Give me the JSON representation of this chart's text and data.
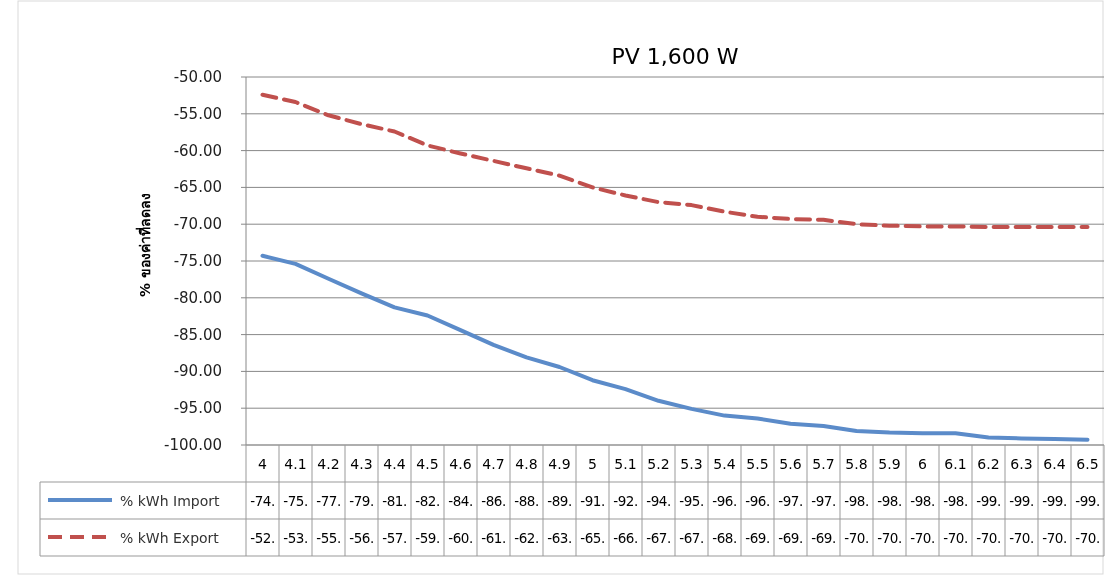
{
  "chart_data": {
    "type": "line",
    "title": "PV 1,600 W",
    "ylabel": "% ของค่าที่ลดลง",
    "categories": [
      "4",
      "4.1",
      "4.2",
      "4.3",
      "4.4",
      "4.5",
      "4.6",
      "4.7",
      "4.8",
      "4.9",
      "5",
      "5.1",
      "5.2",
      "5.3",
      "5.4",
      "5.5",
      "5.6",
      "5.7",
      "5.8",
      "5.9",
      "6",
      "6.1",
      "6.2",
      "6.3",
      "6.4",
      "6.5"
    ],
    "series": [
      {
        "name": "% kWh Import",
        "color": "#5b8bc9",
        "line_style": "solid",
        "values": [
          -74.3,
          -75.4,
          -77.4,
          -79.4,
          -81.3,
          -82.4,
          -84.4,
          -86.4,
          -88.1,
          -89.4,
          -91.2,
          -92.4,
          -94.0,
          -95.1,
          -96.0,
          -96.4,
          -97.1,
          -97.4,
          -98.1,
          -98.3,
          -98.4,
          -98.4,
          -99.0,
          -99.1,
          -99.2,
          -99.3
        ],
        "value_labels": [
          "-74.",
          "-75.",
          "-77.",
          "-79.",
          "-81.",
          "-82.",
          "-84.",
          "-86.",
          "-88.",
          "-89.",
          "-91.",
          "-92.",
          "-94.",
          "-95.",
          "-96.",
          "-96.",
          "-97.",
          "-97.",
          "-98.",
          "-98.",
          "-98.",
          "-98.",
          "-99.",
          "-99.",
          "-99.",
          "-99."
        ]
      },
      {
        "name": "% kWh Export",
        "color": "#c0504d",
        "line_style": "dashed",
        "values": [
          -52.4,
          -53.4,
          -55.2,
          -56.4,
          -57.4,
          -59.3,
          -60.4,
          -61.4,
          -62.4,
          -63.4,
          -65.0,
          -66.1,
          -67.0,
          -67.4,
          -68.3,
          -69.0,
          -69.3,
          -69.4,
          -70.0,
          -70.2,
          -70.3,
          -70.3,
          -70.4,
          -70.4,
          -70.4,
          -70.4
        ],
        "value_labels": [
          "-52.",
          "-53.",
          "-55.",
          "-56.",
          "-57.",
          "-59.",
          "-60.",
          "-61.",
          "-62.",
          "-63.",
          "-65.",
          "-66.",
          "-67.",
          "-67.",
          "-68.",
          "-69.",
          "-69.",
          "-69.",
          "-70.",
          "-70.",
          "-70.",
          "-70.",
          "-70.",
          "-70.",
          "-70.",
          "-70."
        ]
      }
    ],
    "ylim": [
      -100,
      -50
    ],
    "yticks": [
      {
        "value": -50,
        "label": "-50.00"
      },
      {
        "value": -55,
        "label": "-55.00"
      },
      {
        "value": -60,
        "label": "-60.00"
      },
      {
        "value": -65,
        "label": "-65.00"
      },
      {
        "value": -70,
        "label": "-70.00"
      },
      {
        "value": -75,
        "label": "-75.00"
      },
      {
        "value": -80,
        "label": "-80.00"
      },
      {
        "value": -85,
        "label": "-85.00"
      },
      {
        "value": -90,
        "label": "-90.00"
      },
      {
        "value": -95,
        "label": "-95.00"
      },
      {
        "value": -100,
        "label": "-100.00"
      }
    ],
    "grid": "y",
    "legend": "bottom"
  }
}
